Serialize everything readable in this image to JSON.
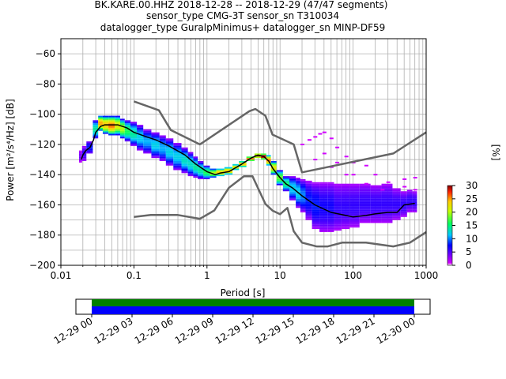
{
  "header": {
    "line1": "BK.KARE.00.HHZ   2018-12-28 -- 2018-12-29  (47/47 segments)",
    "line2": "sensor_type CMG-3T sensor_sn T310034",
    "line3": "datalogger_type GuralpMinimus+ datalogger_sn MINP-DF59"
  },
  "chart_data": {
    "type": "heatmap",
    "title": "BK.KARE.00.HHZ   2018-12-28 -- 2018-12-29  (47/47 segments)",
    "xlabel": "Period [s]",
    "ylabel": "Power [m²/s⁴/Hz] [dB]",
    "xscale": "log",
    "xlim": [
      0.01,
      1000
    ],
    "ylim": [
      -200,
      -50
    ],
    "xticks": [
      "0.01",
      "0.1",
      "1",
      "10",
      "100",
      "1000"
    ],
    "yticks": [
      "−200",
      "−180",
      "−160",
      "−140",
      "−120",
      "−100",
      "−80",
      "−60"
    ],
    "grid": true,
    "colorbar": {
      "label": "[%]",
      "ticks": [
        "0",
        "5",
        "10",
        "15",
        "20",
        "25",
        "30"
      ],
      "range": [
        0,
        30
      ],
      "colors": [
        "#ffffff",
        "#d400ff",
        "#0000ff",
        "#00c8ff",
        "#00ff60",
        "#c8ff00",
        "#ffcc00",
        "#ff2200",
        "#800000"
      ]
    },
    "mean_curve": [
      [
        0.019,
        -130
      ],
      [
        0.02,
        -127
      ],
      [
        0.022,
        -124
      ],
      [
        0.025,
        -122
      ],
      [
        0.028,
        -117
      ],
      [
        0.03,
        -112
      ],
      [
        0.035,
        -108
      ],
      [
        0.04,
        -107
      ],
      [
        0.05,
        -107
      ],
      [
        0.06,
        -107
      ],
      [
        0.08,
        -109
      ],
      [
        0.1,
        -112
      ],
      [
        0.15,
        -115
      ],
      [
        0.2,
        -117
      ],
      [
        0.3,
        -121
      ],
      [
        0.5,
        -127
      ],
      [
        0.7,
        -133
      ],
      [
        1,
        -138
      ],
      [
        1.3,
        -140
      ],
      [
        1.5,
        -139
      ],
      [
        2,
        -138
      ],
      [
        3,
        -133
      ],
      [
        4,
        -129
      ],
      [
        5,
        -127
      ],
      [
        6,
        -128
      ],
      [
        7,
        -131
      ],
      [
        8,
        -136
      ],
      [
        10,
        -142
      ],
      [
        12,
        -146
      ],
      [
        15,
        -149
      ],
      [
        20,
        -154
      ],
      [
        30,
        -160
      ],
      [
        50,
        -165
      ],
      [
        80,
        -167
      ],
      [
        100,
        -168
      ],
      [
        150,
        -167
      ],
      [
        200,
        -166
      ],
      [
        300,
        -165
      ],
      [
        400,
        -165
      ],
      [
        500,
        -160
      ],
      [
        700,
        -159
      ]
    ],
    "noise_models": [
      {
        "name": "high",
        "points": [
          [
            0.1,
            -91.5
          ],
          [
            0.22,
            -97.4
          ],
          [
            0.32,
            -110.5
          ],
          [
            0.8,
            -120
          ],
          [
            3.8,
            -98
          ],
          [
            4.6,
            -96.5
          ],
          [
            6.3,
            -101
          ],
          [
            7.9,
            -113.5
          ],
          [
            15.4,
            -120
          ],
          [
            20,
            -138.5
          ],
          [
            354.8,
            -126
          ],
          [
            1000,
            -112
          ]
        ]
      },
      {
        "name": "low",
        "points": [
          [
            0.1,
            -168
          ],
          [
            0.17,
            -166.7
          ],
          [
            0.4,
            -166.7
          ],
          [
            0.8,
            -169.2
          ],
          [
            1.26,
            -163.7
          ],
          [
            2,
            -148.6
          ],
          [
            3.2,
            -141.1
          ],
          [
            4.2,
            -141.1
          ],
          [
            5,
            -149
          ],
          [
            6.3,
            -159.4
          ],
          [
            7.9,
            -163.8
          ],
          [
            10,
            -166.2
          ],
          [
            12.6,
            -162
          ],
          [
            15.4,
            -177.5
          ],
          [
            20,
            -185
          ],
          [
            31.6,
            -187.5
          ],
          [
            45,
            -187.5
          ],
          [
            70.8,
            -185
          ],
          [
            150,
            -185
          ],
          [
            354.8,
            -187.5
          ],
          [
            600,
            -185
          ],
          [
            1000,
            -178
          ]
        ]
      }
    ],
    "psd_density": [
      [
        0.019,
        -124,
        -132,
        [
          1,
          4
        ]
      ],
      [
        0.02,
        -121,
        -131,
        [
          2,
          6
        ]
      ],
      [
        0.025,
        -118,
        -126,
        [
          3,
          8
        ]
      ],
      [
        0.03,
        -104,
        -116,
        [
          4,
          14
        ]
      ],
      [
        0.035,
        -101,
        -111,
        [
          6,
          25
        ]
      ],
      [
        0.04,
        -101,
        -113,
        [
          5,
          24
        ]
      ],
      [
        0.05,
        -101,
        -114,
        [
          5,
          26
        ]
      ],
      [
        0.06,
        -101,
        -114,
        [
          4,
          22
        ]
      ],
      [
        0.07,
        -103,
        -116,
        [
          4,
          20
        ]
      ],
      [
        0.08,
        -104,
        -118,
        [
          3,
          16
        ]
      ],
      [
        0.1,
        -105,
        -121,
        [
          2,
          14
        ]
      ],
      [
        0.12,
        -107,
        -124,
        [
          2,
          12
        ]
      ],
      [
        0.15,
        -110,
        -126,
        [
          2,
          11
        ]
      ],
      [
        0.2,
        -112,
        -129,
        [
          2,
          12
        ]
      ],
      [
        0.25,
        -114,
        -131,
        [
          2,
          11
        ]
      ],
      [
        0.3,
        -116,
        -134,
        [
          2,
          12
        ]
      ],
      [
        0.4,
        -119,
        -137,
        [
          2,
          12
        ]
      ],
      [
        0.5,
        -122,
        -139,
        [
          2,
          13
        ]
      ],
      [
        0.6,
        -125,
        -141,
        [
          2,
          13
        ]
      ],
      [
        0.7,
        -128,
        -142,
        [
          2,
          14
        ]
      ],
      [
        0.8,
        -131,
        -143,
        [
          2,
          14
        ]
      ],
      [
        1,
        -134,
        -143,
        [
          3,
          16
        ]
      ],
      [
        1.2,
        -136,
        -142,
        [
          4,
          20
        ]
      ],
      [
        1.5,
        -136,
        -141,
        [
          5,
          24
        ]
      ],
      [
        2,
        -135,
        -140,
        [
          5,
          24
        ]
      ],
      [
        2.5,
        -133,
        -137,
        [
          5,
          22
        ]
      ],
      [
        3,
        -131,
        -135,
        [
          6,
          24
        ]
      ],
      [
        4,
        -128,
        -131,
        [
          6,
          26
        ]
      ],
      [
        5,
        -126,
        -129,
        [
          7,
          30
        ]
      ],
      [
        6,
        -126,
        -130,
        [
          7,
          30
        ]
      ],
      [
        7,
        -127,
        -134,
        [
          6,
          26
        ]
      ],
      [
        8,
        -131,
        -140,
        [
          5,
          22
        ]
      ],
      [
        10,
        -137,
        -147,
        [
          4,
          18
        ]
      ],
      [
        12,
        -141,
        -151,
        [
          3,
          15
        ]
      ],
      [
        15,
        -141,
        -157,
        [
          2,
          12
        ]
      ],
      [
        18,
        -142,
        -162,
        [
          2,
          12
        ]
      ],
      [
        20,
        -143,
        -165,
        [
          2,
          10
        ]
      ],
      [
        25,
        -144,
        -170,
        [
          2,
          8
        ]
      ],
      [
        30,
        -145,
        -176,
        [
          2,
          8
        ]
      ],
      [
        40,
        -145,
        -178,
        [
          2,
          7
        ]
      ],
      [
        50,
        -145,
        -178,
        [
          2,
          7
        ]
      ],
      [
        60,
        -146,
        -177,
        [
          2,
          6
        ]
      ],
      [
        80,
        -146,
        -176,
        [
          2,
          6
        ]
      ],
      [
        100,
        -146,
        -175,
        [
          2,
          6
        ]
      ],
      [
        150,
        -146,
        -172,
        [
          2,
          6
        ]
      ],
      [
        200,
        -147,
        -172,
        [
          2,
          6
        ]
      ],
      [
        300,
        -146,
        -172,
        [
          2,
          6
        ]
      ],
      [
        400,
        -149,
        -170,
        [
          2,
          6
        ]
      ],
      [
        500,
        -151,
        -168,
        [
          2,
          6
        ]
      ],
      [
        600,
        -150,
        -165,
        [
          2,
          6
        ]
      ],
      [
        700,
        -151,
        -165,
        [
          2,
          6
        ]
      ]
    ],
    "psd_scatter": [
      [
        20,
        -120
      ],
      [
        25,
        -117
      ],
      [
        30,
        -115
      ],
      [
        35,
        -113
      ],
      [
        40,
        -112
      ],
      [
        50,
        -116
      ],
      [
        60,
        -122
      ],
      [
        80,
        -128
      ],
      [
        100,
        -132
      ],
      [
        150,
        -134
      ],
      [
        200,
        -140
      ],
      [
        300,
        -145
      ],
      [
        40,
        -126
      ],
      [
        60,
        -132
      ],
      [
        100,
        -140
      ],
      [
        150,
        -146
      ],
      [
        250,
        -150
      ],
      [
        500,
        -143
      ],
      [
        700,
        -142
      ],
      [
        500,
        -148
      ],
      [
        700,
        -150
      ],
      [
        30,
        -130
      ],
      [
        50,
        -135
      ],
      [
        80,
        -140
      ]
    ]
  },
  "timeline": {
    "ticks": [
      "12-29 00",
      "12-29 03",
      "12-29 06",
      "12-29 09",
      "12-29 12",
      "12-29 15",
      "12-29 18",
      "12-29 21",
      "12-30 00"
    ],
    "coverage_colors": [
      "#008000",
      "#0000ff"
    ],
    "start_hour": 0,
    "end_hour": 24
  }
}
